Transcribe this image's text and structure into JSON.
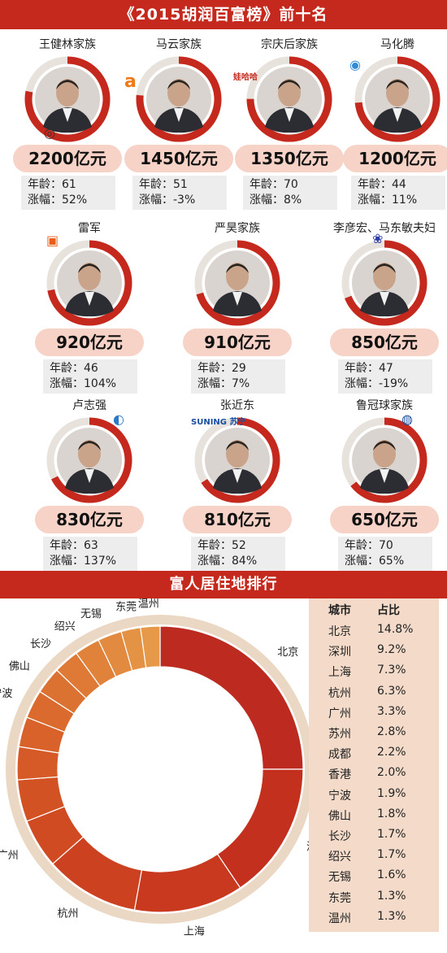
{
  "header": {
    "title": "《2015胡润百富榜》前十名"
  },
  "top10": [
    {
      "name": "王健林家族",
      "wealth": "2200亿元",
      "age": "年龄：61",
      "change": "涨幅：52%",
      "logo": "wanda-logo-icon"
    },
    {
      "name": "马云家族",
      "wealth": "1450亿元",
      "age": "年龄：51",
      "change": "涨幅：-3%",
      "logo": "alibaba-logo-icon"
    },
    {
      "name": "宗庆后家族",
      "wealth": "1350亿元",
      "age": "年龄：70",
      "change": "涨幅：8%",
      "logo": "wahaha-logo-icon"
    },
    {
      "name": "马化腾",
      "wealth": "1200亿元",
      "age": "年龄：44",
      "change": "涨幅：11%",
      "logo": "tencent-logo-icon"
    },
    {
      "name": "雷军",
      "wealth": "920亿元",
      "age": "年龄：46",
      "change": "涨幅：104%",
      "logo": "xiaomi-logo-icon"
    },
    {
      "name": "严昊家族",
      "wealth": "910亿元",
      "age": "年龄：29",
      "change": "涨幅：7%",
      "logo": ""
    },
    {
      "name": "李彦宏、马东敏夫妇",
      "wealth": "850亿元",
      "age": "年龄：47",
      "change": "涨幅：-19%",
      "logo": "baidu-logo-icon"
    },
    {
      "name": "卢志强",
      "wealth": "830亿元",
      "age": "年龄：63",
      "change": "涨幅：137%",
      "logo": "oceanwide-logo-icon"
    },
    {
      "name": "张近东",
      "wealth": "810亿元",
      "age": "年龄：52",
      "change": "涨幅：84%",
      "logo": "suning-logo-icon"
    },
    {
      "name": "鲁冠球家族",
      "wealth": "650亿元",
      "age": "年龄：70",
      "change": "涨幅：65%",
      "logo": "wanxiang-logo-icon"
    }
  ],
  "logos": {
    "suning_text": "SUNING 苏宁",
    "alibaba_text": "a",
    "wahaha_text": "娃哈哈"
  },
  "residence": {
    "title": "富人居住地排行"
  },
  "colors": {
    "accent": "#c5281c",
    "pill": "#f6d3c6",
    "table_bg": "#f3dac9",
    "ring_outer": "#ead7c4"
  },
  "chart_data": {
    "type": "pie",
    "variant": "donut",
    "title": "富人居住地排行",
    "categories": [
      "北京",
      "深圳",
      "上海",
      "杭州",
      "广州",
      "苏州",
      "成都",
      "香港",
      "宁波",
      "佛山",
      "长沙",
      "绍兴",
      "无锡",
      "东莞",
      "温州"
    ],
    "values": [
      14.8,
      9.2,
      7.3,
      6.3,
      3.3,
      2.8,
      2.2,
      2.0,
      1.9,
      1.8,
      1.7,
      1.7,
      1.6,
      1.3,
      1.3
    ],
    "value_labels": [
      "14.8%",
      "9.2%",
      "7.3%",
      "6.3%",
      "3.3%",
      "2.8%",
      "2.2%",
      "2.0%",
      "1.9%",
      "1.8%",
      "1.7%",
      "1.7%",
      "1.6%",
      "1.3%",
      "1.3%"
    ],
    "table_headers": [
      "城市",
      "占比"
    ],
    "slice_colors": [
      "#bd2a1f",
      "#c3311e",
      "#c8391f",
      "#cc4120",
      "#d04a22",
      "#d35224",
      "#d55a27",
      "#d8622a",
      "#da6a2d",
      "#dc7231",
      "#de7a35",
      "#e0823a",
      "#e28a3f",
      "#e49244",
      "#e69a49"
    ]
  }
}
